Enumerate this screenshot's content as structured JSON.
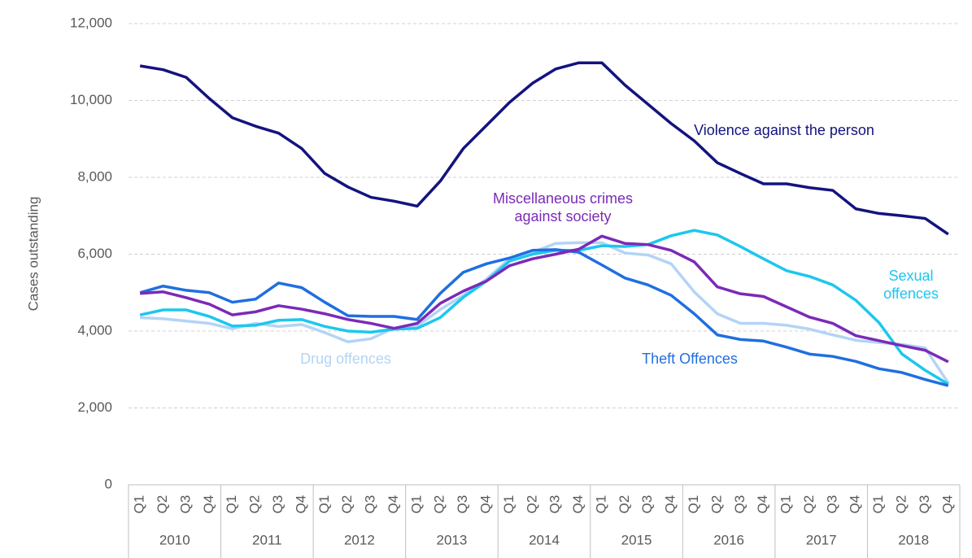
{
  "chart_data": {
    "type": "line",
    "ylabel": "Cases outstanding",
    "categories": [
      "Q1",
      "Q2",
      "Q3",
      "Q4",
      "Q1",
      "Q2",
      "Q3",
      "Q4",
      "Q1",
      "Q2",
      "Q3",
      "Q4",
      "Q1",
      "Q2",
      "Q3",
      "Q4",
      "Q1",
      "Q2",
      "Q3",
      "Q4",
      "Q1",
      "Q2",
      "Q3",
      "Q4",
      "Q1",
      "Q2",
      "Q3",
      "Q4",
      "Q1",
      "Q2",
      "Q3",
      "Q4",
      "Q1",
      "Q2",
      "Q3",
      "Q4"
    ],
    "groups": [
      "2010",
      "2011",
      "2012",
      "2013",
      "2014",
      "2015",
      "2016",
      "2017",
      "2018"
    ],
    "series": [
      {
        "name": "Violence against the person",
        "color": "#14137f",
        "values": [
          10900,
          10800,
          10600,
          10050,
          9550,
          9330,
          9150,
          8750,
          8100,
          7750,
          7480,
          7380,
          7250,
          7900,
          8750,
          9350,
          9950,
          10450,
          10820,
          10980,
          10980,
          10400,
          9900,
          9400,
          8950,
          8380,
          8100,
          7830,
          7830,
          7730,
          7660,
          7180,
          7060,
          7000,
          6930,
          6520
        ]
      },
      {
        "name": "Drug offences",
        "color": "#b3d4f5",
        "values": [
          4350,
          4320,
          4260,
          4200,
          4060,
          4200,
          4120,
          4170,
          3960,
          3720,
          3800,
          4080,
          4130,
          4560,
          4930,
          5350,
          5880,
          6050,
          6280,
          6300,
          6300,
          6030,
          5980,
          5750,
          5020,
          4450,
          4200,
          4200,
          4150,
          4050,
          3900,
          3760,
          3700,
          3650,
          3560,
          2650
        ]
      },
      {
        "name": "Sexual offences",
        "color": "#1cc7ee",
        "values": [
          4420,
          4550,
          4550,
          4380,
          4130,
          4150,
          4280,
          4300,
          4120,
          4000,
          3970,
          4050,
          4070,
          4350,
          4880,
          5300,
          5820,
          6000,
          6100,
          6100,
          6220,
          6200,
          6250,
          6480,
          6620,
          6500,
          6200,
          5880,
          5570,
          5420,
          5200,
          4800,
          4220,
          3400,
          2980,
          2620
        ]
      },
      {
        "name": "Theft Offences",
        "color": "#1f6fe0",
        "values": [
          5000,
          5170,
          5060,
          5000,
          4750,
          4830,
          5250,
          5130,
          4750,
          4400,
          4380,
          4380,
          4300,
          4980,
          5530,
          5750,
          5900,
          6100,
          6120,
          6050,
          5720,
          5380,
          5200,
          4930,
          4450,
          3900,
          3780,
          3740,
          3580,
          3400,
          3340,
          3210,
          3020,
          2920,
          2740,
          2580
        ]
      },
      {
        "name": "Miscellaneous crimes against society",
        "color": "#7b2ab8",
        "values": [
          4980,
          5020,
          4870,
          4700,
          4420,
          4500,
          4660,
          4570,
          4450,
          4300,
          4200,
          4070,
          4200,
          4720,
          5040,
          5300,
          5700,
          5880,
          6000,
          6130,
          6470,
          6280,
          6250,
          6100,
          5800,
          5150,
          4970,
          4900,
          4630,
          4360,
          4200,
          3880,
          3750,
          3620,
          3500,
          3200
        ]
      }
    ],
    "ylim": [
      0,
      12000
    ],
    "yticks": [
      0,
      {
        "value": 2000,
        "label": "2,000"
      },
      {
        "value": 4000,
        "label": "4,000"
      },
      {
        "value": 6000,
        "label": "6,000"
      },
      {
        "value": 8000,
        "label": "8,000"
      },
      {
        "value": 10000,
        "label": "10,000"
      },
      {
        "value": 12000,
        "label": "12,000"
      }
    ],
    "grid": true
  }
}
